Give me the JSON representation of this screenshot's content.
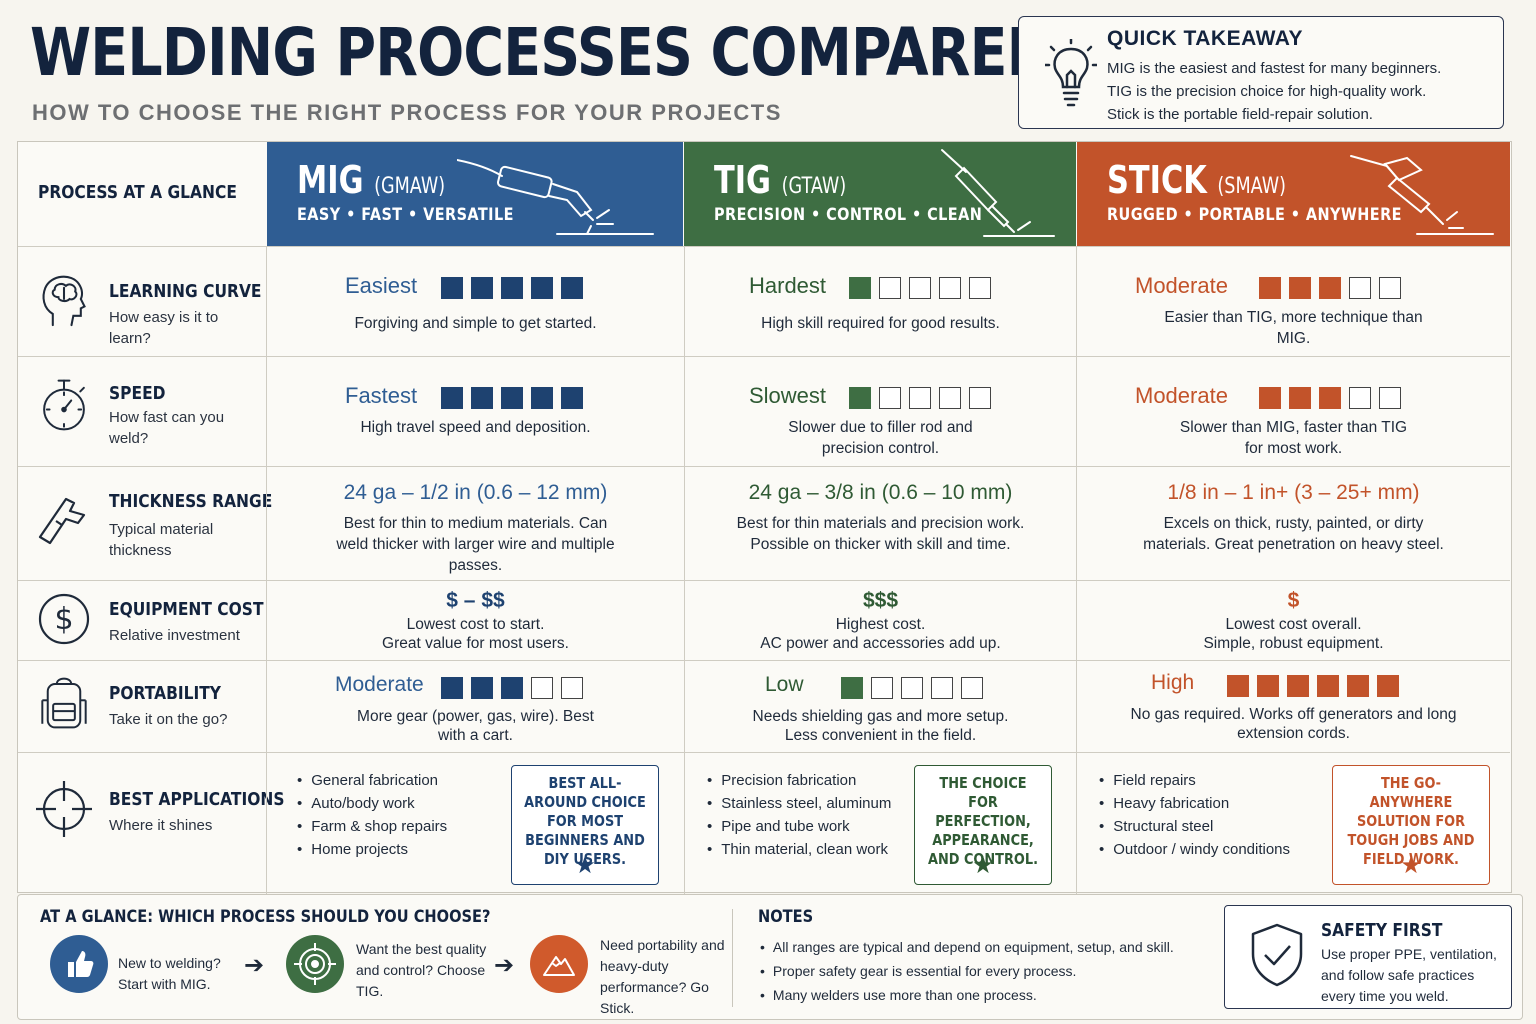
{
  "title": "WELDING PROCESSES COMPARED",
  "subtitle": "HOW TO CHOOSE THE RIGHT PROCESS FOR YOUR PROJECTS",
  "takeaway": {
    "icon": "lightbulb-icon",
    "title": "QUICK TAKEAWAY",
    "lines": [
      "MIG is the easiest and fastest for many beginners.",
      "TIG is the precision choice for high-quality work.",
      "Stick is the portable field-repair solution."
    ]
  },
  "header_label": "PROCESS AT A GLANCE",
  "processes": [
    {
      "name": "MIG",
      "abbr": "(GMAW)",
      "tagline": "EASY • FAST • VERSATILE",
      "color": "#2f5d93",
      "icon": "mig-torch-icon"
    },
    {
      "name": "TIG",
      "abbr": "(GTAW)",
      "tagline": "PRECISION • CONTROL • CLEAN",
      "color": "#3e6e43",
      "icon": "tig-torch-icon"
    },
    {
      "name": "STICK",
      "abbr": "(SMAW)",
      "tagline": "RUGGED • PORTABLE • ANYWHERE",
      "color": "#c2532a",
      "icon": "stick-electrode-holder-icon"
    }
  ],
  "rows": {
    "learning": {
      "title": "LEARNING CURVE",
      "sub": "How easy is it to learn?",
      "icon": "brain-head-icon",
      "values": [
        {
          "label": "Easiest",
          "filled": 5,
          "total": 5,
          "desc": "Forgiving and simple to get started."
        },
        {
          "label": "Hardest",
          "filled": 1,
          "total": 5,
          "desc": "High skill required for good results."
        },
        {
          "label": "Moderate",
          "filled": 3,
          "total": 5,
          "desc": "Easier than TIG, more technique than MIG."
        }
      ]
    },
    "speed": {
      "title": "SPEED",
      "sub": "How fast can you weld?",
      "icon": "stopwatch-icon",
      "values": [
        {
          "label": "Fastest",
          "filled": 5,
          "total": 5,
          "desc": "High travel speed and deposition."
        },
        {
          "label": "Slowest",
          "filled": 1,
          "total": 5,
          "desc": "Slower due to filler rod and precision control."
        },
        {
          "label": "Moderate",
          "filled": 3,
          "total": 5,
          "desc": "Slower than MIG, faster than TIG for most work."
        }
      ]
    },
    "thickness": {
      "title": "THICKNESS RANGE",
      "sub": "Typical material thickness",
      "icon": "caliper-icon",
      "values": [
        {
          "label": "24 ga – 1/2 in (0.6 – 12 mm)",
          "desc": "Best for thin to medium materials. Can weld thicker with larger wire and multiple passes."
        },
        {
          "label": "24 ga – 3/8 in (0.6 – 10 mm)",
          "desc": "Best for thin materials and precision work. Possible on thicker with skill and time."
        },
        {
          "label": "1/8 in – 1 in+  (3 – 25+ mm)",
          "desc": "Excels on thick, rusty, painted, or dirty materials. Great penetration on heavy steel."
        }
      ]
    },
    "cost": {
      "title": "EQUIPMENT COST",
      "sub": "Relative investment",
      "icon": "dollar-circle-icon",
      "values": [
        {
          "label": "$ – $$",
          "desc1": "Lowest cost to start.",
          "desc2": "Great value for most users."
        },
        {
          "label": "$$$",
          "desc1": "Highest cost.",
          "desc2": "AC power and accessories add up."
        },
        {
          "label": "$",
          "desc1": "Lowest cost overall.",
          "desc2": "Simple, robust equipment."
        }
      ]
    },
    "portability": {
      "title": "PORTABILITY",
      "sub": "Take it on the go?",
      "icon": "backpack-icon",
      "values": [
        {
          "label": "Moderate",
          "filled": 3,
          "total": 5,
          "desc": "More gear (power, gas, wire). Best with a cart."
        },
        {
          "label": "Low",
          "filled": 1,
          "total": 5,
          "desc": "Needs shielding gas and more setup. Less convenient in the field."
        },
        {
          "label": "High",
          "filled": 6,
          "total": 6,
          "desc": "No gas required. Works off generators and long extension cords."
        }
      ]
    },
    "applications": {
      "title": "BEST APPLICATIONS",
      "sub": "Where it shines",
      "icon": "crosshair-icon",
      "values": [
        {
          "items": [
            "General fabrication",
            "Auto/body work",
            "Farm & shop repairs",
            "Home projects"
          ],
          "badge": "BEST ALL-AROUND CHOICE FOR MOST BEGINNERS AND DIY USERS."
        },
        {
          "items": [
            "Precision fabrication",
            "Stainless steel, aluminum",
            "Pipe and tube work",
            "Thin material, clean work"
          ],
          "badge": "THE CHOICE FOR PERFECTION, APPEARANCE, AND CONTROL."
        },
        {
          "items": [
            "Field repairs",
            "Heavy fabrication",
            "Structural steel",
            "Outdoor / windy conditions"
          ],
          "badge": "THE GO-ANYWHERE SOLUTION FOR TOUGH JOBS AND FIELD WORK."
        }
      ]
    }
  },
  "choose": {
    "title": "AT A GLANCE: WHICH PROCESS SHOULD YOU CHOOSE?",
    "steps": [
      {
        "icon": "thumbs-up-icon",
        "text": "New to welding? Start with MIG."
      },
      {
        "icon": "target-icon",
        "text": "Want the best quality and control? Choose TIG."
      },
      {
        "icon": "mountain-icon",
        "text": "Need portability and heavy-duty performance? Go Stick."
      }
    ]
  },
  "notes": {
    "title": "NOTES",
    "items": [
      "All ranges are typical and depend on equipment, setup, and skill.",
      "Proper safety gear is essential for every process.",
      "Many welders use more than one process."
    ]
  },
  "safety": {
    "icon": "shield-check-icon",
    "title": "SAFETY FIRST",
    "text": "Use proper PPE, ventilation, and follow safe practices every time you weld."
  }
}
